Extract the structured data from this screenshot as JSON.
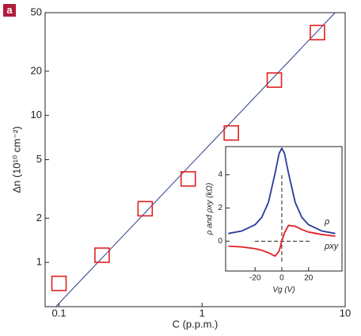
{
  "panel_label": "a",
  "chart_data": [
    {
      "type": "scatter",
      "x_label": "C (p.p.m.)",
      "y_label": "Δn (10¹⁰ cm⁻²)",
      "xlog": true,
      "ylog": true,
      "xlim": [
        0.08,
        10
      ],
      "ylim": [
        0.5,
        50
      ],
      "xticks": [
        0.1,
        1,
        10
      ],
      "yticks": [
        1,
        2,
        5,
        10,
        20,
        50
      ],
      "x": [
        0.1,
        0.2,
        0.4,
        0.8,
        1.6,
        3.2,
        6.4
      ],
      "values": [
        0.72,
        1.12,
        2.32,
        3.7,
        7.6,
        17.4,
        36.6
      ],
      "color": "#e02020",
      "fit": {
        "color": "#2a3a8a",
        "x": [
          0.095,
          8.5
        ],
        "values": [
          0.5,
          50
        ]
      }
    },
    {
      "type": "line",
      "y_label": "ρ and ρxy (kΩ)",
      "x_label": "Vg (V)",
      "xlim": [
        -42,
        45
      ],
      "ylim": [
        -1.8,
        5.7
      ],
      "xticks": [
        -20,
        0,
        20
      ],
      "yticks": [
        0,
        2,
        4
      ],
      "x": [
        -40,
        -30,
        -20,
        -15,
        -10,
        -5,
        -2,
        0,
        2,
        5,
        10,
        15,
        20,
        30,
        40
      ],
      "series": [
        {
          "name": "ρ",
          "color": "#2a3a9a",
          "values": [
            0.46,
            0.61,
            0.99,
            1.43,
            2.34,
            4.1,
            5.29,
            5.6,
            5.29,
            4.1,
            2.34,
            1.43,
            0.99,
            0.61,
            0.46
          ]
        },
        {
          "name": "ρxy",
          "color": "#e02020",
          "values": [
            -0.3,
            -0.35,
            -0.45,
            -0.55,
            -0.7,
            -0.9,
            -0.6,
            0,
            0.5,
            0.95,
            0.9,
            0.7,
            0.55,
            0.4,
            0.3
          ]
        }
      ]
    }
  ]
}
